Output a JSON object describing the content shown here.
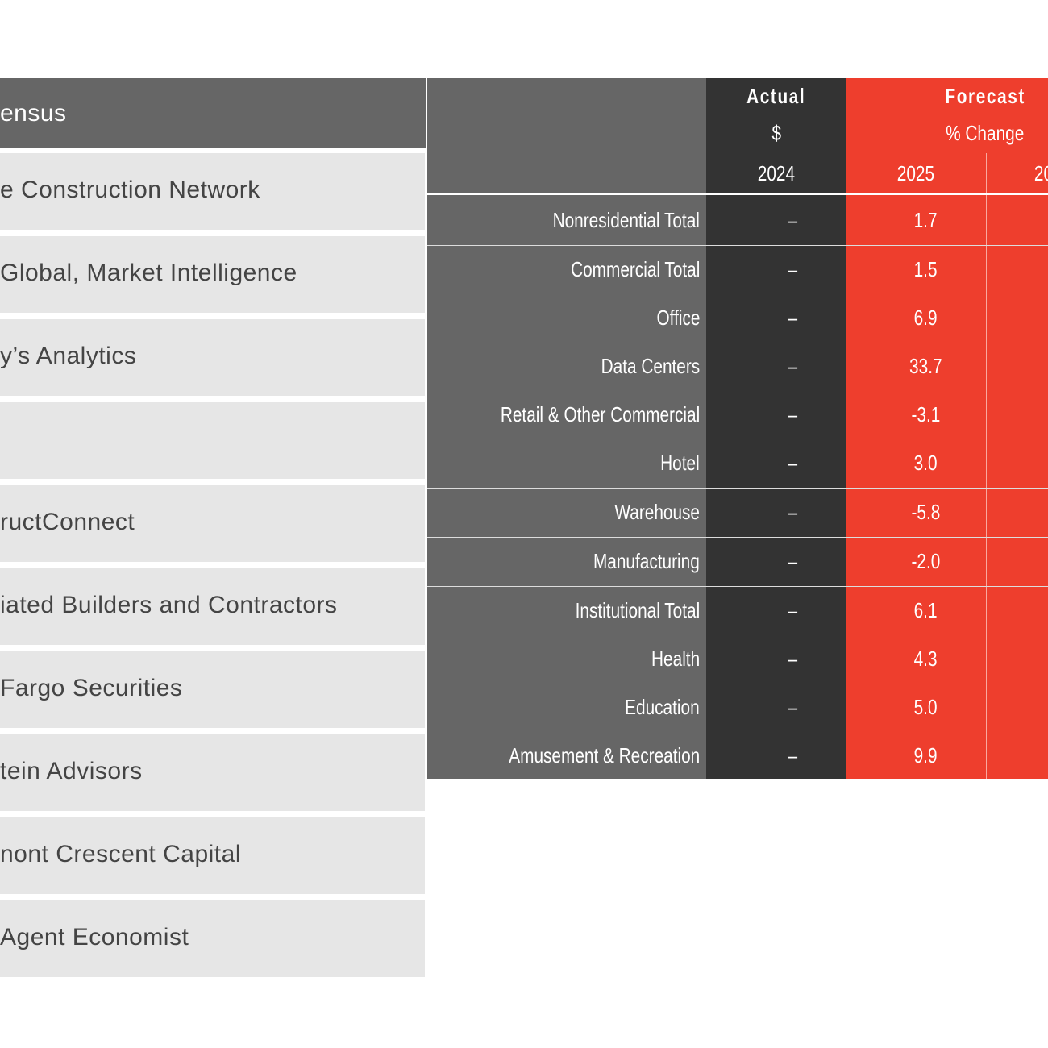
{
  "left": {
    "header": "ensus",
    "rows": [
      "e Construction Network",
      "Global, Market Intelligence",
      "y’s Analytics",
      "ructConnect",
      "iated Builders and Contractors",
      "Fargo Securities",
      "tein Advisors",
      "nont Crescent Capital",
      "Agent Economist"
    ]
  },
  "table": {
    "header": {
      "actual": "Actual",
      "actual_unit": "$",
      "actual_year": "2024",
      "forecast": "Forecast",
      "forecast_unit": "% Change",
      "forecast_years": [
        "2025",
        "20"
      ]
    },
    "rows": [
      {
        "label": "Nonresidential Total",
        "actual": "–",
        "value": "1.7"
      },
      {
        "label": "Commercial Total",
        "actual": "–",
        "value": "1.5"
      },
      {
        "label": "Office",
        "actual": "–",
        "value": "6.9"
      },
      {
        "label": "Data Centers",
        "actual": "–",
        "value": "33.7"
      },
      {
        "label": "Retail & Other Commercial",
        "actual": "–",
        "value": "-3.1"
      },
      {
        "label": "Hotel",
        "actual": "–",
        "value": "3.0"
      },
      {
        "label": "Warehouse",
        "actual": "–",
        "value": "-5.8"
      },
      {
        "label": "Manufacturing",
        "actual": "–",
        "value": "-2.0"
      },
      {
        "label": "Institutional Total",
        "actual": "–",
        "value": "6.1"
      },
      {
        "label": "Health",
        "actual": "–",
        "value": "4.3"
      },
      {
        "label": "Education",
        "actual": "–",
        "value": "5.0"
      },
      {
        "label": "Amusement & Recreation",
        "actual": "–",
        "value": "9.9"
      }
    ]
  }
}
